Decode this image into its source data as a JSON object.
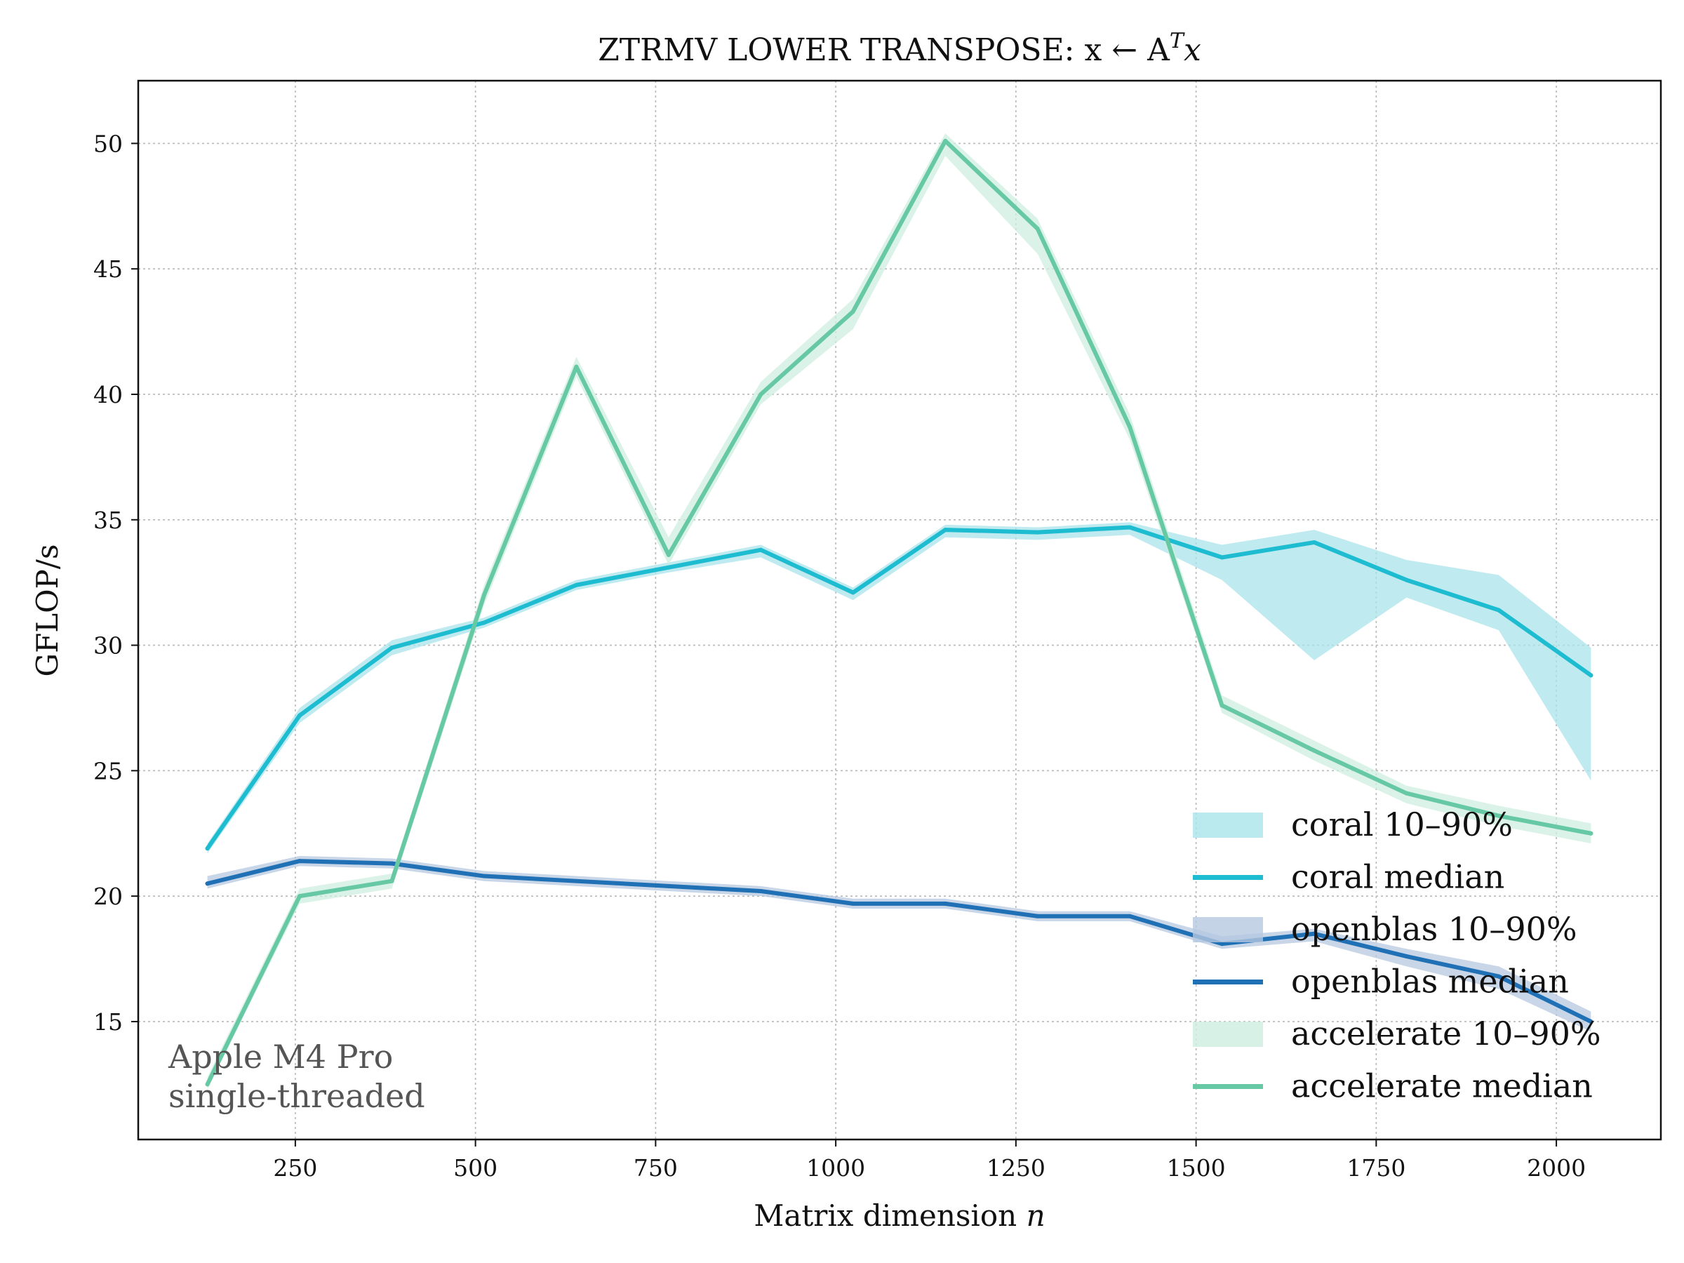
{
  "chart_data": {
    "type": "line",
    "title": "ZTRMV LOWER TRANSPOSE: x ← A",
    "title_superscript": "T",
    "title_tail": "x",
    "xlabel": "Matrix dimension",
    "xlabel_var": "n",
    "ylabel": "GFLOP/s",
    "xlim": [
      32,
      2145
    ],
    "ylim": [
      10.3,
      52.5
    ],
    "xticks": [
      250,
      500,
      750,
      1000,
      1250,
      1500,
      1750,
      2000
    ],
    "yticks": [
      15,
      20,
      25,
      30,
      35,
      40,
      45,
      50
    ],
    "grid": true,
    "legend_position": "lower-right",
    "x": [
      128,
      256,
      384,
      512,
      640,
      768,
      896,
      1024,
      1152,
      1280,
      1408,
      1536,
      1664,
      1792,
      1920,
      2048
    ],
    "series": [
      {
        "name": "coral median",
        "band_name": "coral 10–90%",
        "color": "#1ebcd0",
        "band_color": "#a9e3ea",
        "values": [
          21.9,
          27.2,
          29.9,
          30.9,
          32.4,
          33.1,
          33.8,
          32.1,
          34.6,
          34.5,
          34.7,
          33.5,
          34.1,
          32.6,
          31.4,
          28.8
        ],
        "band_low": [
          21.7,
          26.9,
          29.6,
          30.7,
          32.2,
          32.9,
          33.5,
          31.8,
          34.3,
          34.2,
          34.4,
          32.6,
          29.4,
          31.9,
          30.6,
          24.6
        ],
        "band_high": [
          22.1,
          27.5,
          30.2,
          31.1,
          32.6,
          33.3,
          34.0,
          32.3,
          34.8,
          34.7,
          34.9,
          34.0,
          34.6,
          33.4,
          32.8,
          29.9
        ]
      },
      {
        "name": "openblas median",
        "band_name": "openblas 10–90%",
        "color": "#1f70b4",
        "band_color": "#b5c8e0",
        "values": [
          20.5,
          21.4,
          21.3,
          20.8,
          20.6,
          20.4,
          20.2,
          19.7,
          19.7,
          19.2,
          19.2,
          18.1,
          18.5,
          17.6,
          16.8,
          15.0
        ],
        "band_low": [
          20.3,
          21.2,
          21.1,
          20.6,
          20.4,
          20.2,
          20.0,
          19.5,
          19.5,
          19.0,
          19.0,
          17.9,
          18.2,
          17.2,
          16.3,
          14.6
        ],
        "band_high": [
          20.8,
          21.6,
          21.5,
          21.0,
          20.8,
          20.6,
          20.4,
          19.9,
          19.9,
          19.4,
          19.4,
          18.4,
          18.7,
          17.9,
          17.2,
          15.4
        ]
      },
      {
        "name": "accelerate median",
        "band_name": "accelerate 10–90%",
        "color": "#66c9a3",
        "band_color": "#cdeee0",
        "values": [
          12.5,
          20.0,
          20.6,
          32.0,
          41.1,
          33.6,
          40.0,
          43.3,
          50.1,
          46.6,
          38.7,
          27.6,
          25.8,
          24.1,
          23.2,
          22.5
        ],
        "band_low": [
          12.3,
          19.7,
          20.3,
          31.6,
          40.7,
          33.2,
          39.6,
          42.6,
          49.5,
          45.6,
          38.2,
          27.3,
          25.4,
          23.7,
          22.8,
          22.1
        ],
        "band_high": [
          12.8,
          20.3,
          20.9,
          32.4,
          41.5,
          34.3,
          40.5,
          43.8,
          50.4,
          47.0,
          39.2,
          28.0,
          26.2,
          24.4,
          23.6,
          22.9
        ]
      }
    ],
    "annotation": [
      "Apple M4 Pro",
      "single-threaded"
    ]
  }
}
